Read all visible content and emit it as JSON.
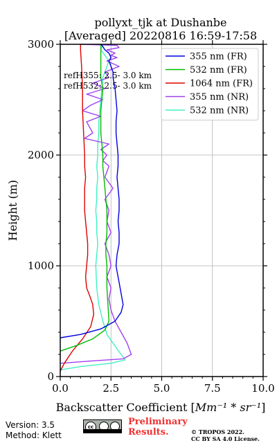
{
  "chart_data": {
    "type": "line",
    "title": "pollyxt_tjk at Dushanbe",
    "subtitle": "[Averaged] 20220816 16:59-17:58",
    "xlabel": "Backscatter Coefficient [Mm^-1 * sr^-1]",
    "ylabel": "Height (m)",
    "xlim": [
      0,
      10
    ],
    "ylim": [
      0,
      3000
    ],
    "xticks": [
      0,
      2.5,
      5,
      7.5,
      10
    ],
    "xtick_labels": [
      "0.0",
      "2.5",
      "5.0",
      "7.5",
      "10.0"
    ],
    "yticks": [
      0,
      1000,
      2000,
      3000
    ],
    "ytick_labels": [
      "0",
      "1000",
      "2000",
      "3000"
    ],
    "grid": true,
    "legend_position": "top-right",
    "annotations": [
      "refH355:  2.5- 3.0 km",
      "refH532:  2.5- 3.0 km"
    ],
    "series": [
      {
        "name": "355 nm (FR)",
        "color": "#0000dd",
        "x": [
          0.0,
          1.0,
          2.0,
          2.7,
          3.0,
          3.1,
          3.0,
          2.9,
          2.8,
          2.75,
          2.8,
          2.9,
          2.9,
          2.85,
          2.9,
          2.9,
          2.85,
          2.8,
          2.85,
          2.85,
          2.8,
          2.75,
          2.75,
          2.8,
          2.75,
          2.7,
          2.6,
          2.6,
          2.5,
          2.4,
          2.5,
          2.4,
          2.2,
          2.1,
          2.0
        ],
        "y": [
          350,
          380,
          430,
          500,
          580,
          650,
          750,
          850,
          950,
          1000,
          1100,
          1200,
          1300,
          1400,
          1500,
          1600,
          1700,
          1800,
          1900,
          2000,
          2100,
          2200,
          2300,
          2400,
          2500,
          2600,
          2700,
          2750,
          2800,
          2850,
          2880,
          2920,
          2950,
          2980,
          3000
        ]
      },
      {
        "name": "532 nm (FR)",
        "color": "#00bb00",
        "x": [
          0.0,
          0.8,
          1.6,
          2.2,
          2.4,
          2.35,
          2.3,
          2.3,
          2.25,
          2.25,
          2.3,
          2.3,
          2.3,
          2.25,
          2.2,
          2.15,
          2.1,
          2.1,
          2.05,
          2.0,
          2.0,
          2.0,
          2.05,
          2.1,
          2.0,
          2.0,
          2.0,
          2.0
        ],
        "y": [
          230,
          280,
          340,
          420,
          500,
          650,
          800,
          1000,
          1100,
          1200,
          1300,
          1400,
          1500,
          1600,
          1700,
          1800,
          1900,
          2000,
          2100,
          2200,
          2300,
          2400,
          2500,
          2600,
          2700,
          2800,
          2900,
          3000
        ]
      },
      {
        "name": "1064 nm (FR)",
        "color": "#dd0000",
        "x": [
          0.0,
          0.2,
          0.6,
          1.1,
          1.5,
          1.65,
          1.6,
          1.45,
          1.3,
          1.25,
          1.3,
          1.35,
          1.35,
          1.3,
          1.25,
          1.2,
          1.2,
          1.2,
          1.25,
          1.2,
          1.2,
          1.15,
          1.1,
          1.1,
          1.05,
          1.0,
          1.0
        ],
        "y": [
          50,
          120,
          230,
          340,
          450,
          560,
          650,
          730,
          800,
          900,
          1000,
          1100,
          1200,
          1300,
          1400,
          1500,
          1600,
          1700,
          1800,
          1900,
          2000,
          2200,
          2400,
          2600,
          2800,
          2950,
          3000
        ]
      },
      {
        "name": "355 nm (NR)",
        "color": "#a040f0",
        "x": [
          0.0,
          1.5,
          3.1,
          3.5,
          3.3,
          3.0,
          2.7,
          2.5,
          2.4,
          2.5,
          2.3,
          2.5,
          2.4,
          2.2,
          2.5,
          2.3,
          2.4,
          2.2,
          2.6,
          2.2,
          2.4,
          2.1,
          2.3,
          2.0,
          2.4,
          1.2,
          1.6,
          1.3,
          2.0,
          1.1,
          1.5,
          2.1,
          1.3,
          2.2,
          1.6,
          2.4,
          2.2,
          2.9,
          2.3,
          2.8,
          2.5,
          2.7,
          2.3,
          2.9,
          2.8,
          1.0
        ],
        "y": [
          120,
          140,
          160,
          200,
          300,
          400,
          500,
          600,
          700,
          800,
          900,
          1000,
          1100,
          1200,
          1300,
          1400,
          1500,
          1600,
          1700,
          1800,
          1900,
          1950,
          2000,
          2050,
          2100,
          2150,
          2200,
          2300,
          2350,
          2400,
          2450,
          2500,
          2550,
          2600,
          2650,
          2700,
          2750,
          2800,
          2850,
          2880,
          2900,
          2920,
          2950,
          2970,
          2990,
          3000
        ]
      },
      {
        "name": "532 nm (NR)",
        "color": "#40f0c0",
        "x": [
          0.0,
          1.0,
          2.5,
          3.2,
          2.8,
          2.3,
          2.1,
          1.9,
          1.8,
          1.75,
          1.8,
          1.85,
          1.8,
          1.8,
          1.75,
          1.8,
          1.8,
          1.85,
          1.8,
          1.85,
          1.85,
          1.9,
          1.9,
          1.95,
          2.0,
          2.1,
          2.4,
          2.0,
          2.1
        ],
        "y": [
          60,
          90,
          120,
          150,
          250,
          380,
          500,
          650,
          800,
          1000,
          1100,
          1200,
          1300,
          1400,
          1500,
          1600,
          1700,
          1800,
          1900,
          2000,
          2100,
          2200,
          2300,
          2400,
          2500,
          2700,
          2850,
          2950,
          3000
        ]
      }
    ]
  },
  "footer": {
    "version": "Version: 3.5",
    "method": "Method: Klett",
    "license_badge": "cc",
    "preliminary_line1": "Preliminary",
    "preliminary_line2": "Results.",
    "copyright_line1": "© TROPOS 2022.",
    "copyright_line2": "CC BY SA 4.0 License."
  }
}
